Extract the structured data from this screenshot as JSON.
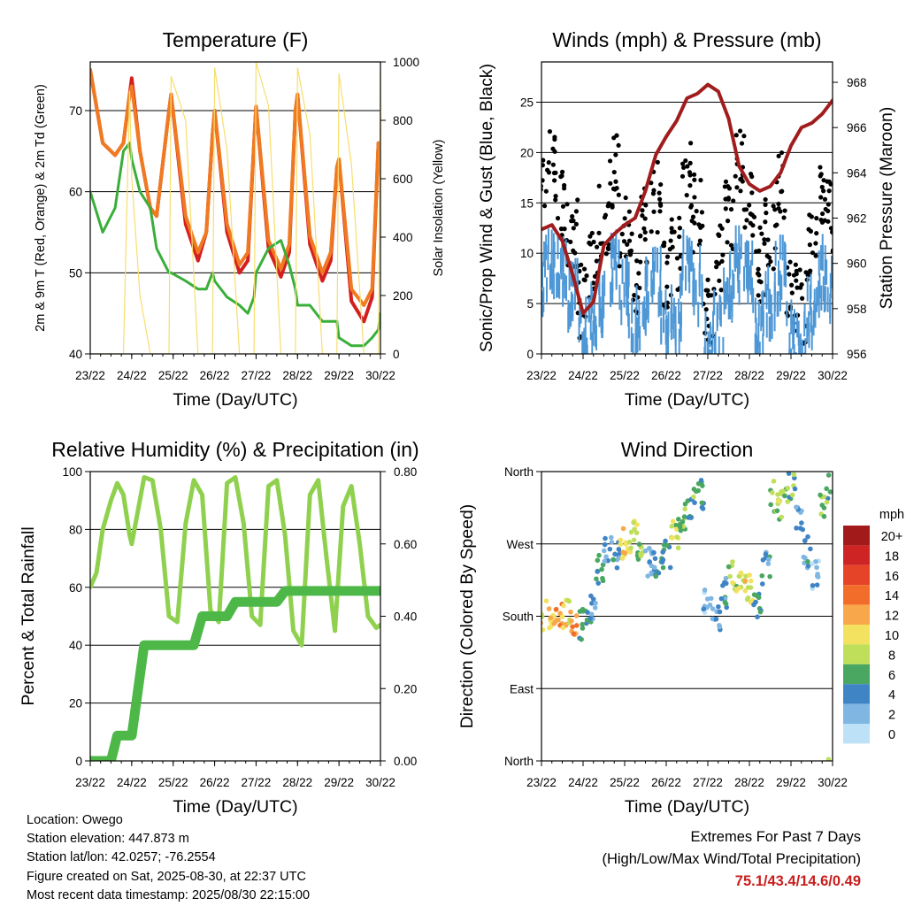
{
  "x_ticks": [
    "23/22",
    "24/22",
    "25/22",
    "26/22",
    "27/22",
    "28/22",
    "29/22",
    "30/22"
  ],
  "colors": {
    "temp_2m": "#d41f1f",
    "temp_9m": "#f07a21",
    "dewpoint": "#3aae3a",
    "solar": "#f7de6e",
    "gust": "#000000",
    "wind": "#4d97d6",
    "pressure": "#a11d1d",
    "rh": "#8fd14f",
    "precip": "#4db848",
    "extremes_text": "#c81e1e"
  },
  "chart_data": [
    {
      "id": "temperature",
      "type": "line",
      "title": "Temperature (F)",
      "xlabel": "Time (Day/UTC)",
      "ylabel": "2m & 9m T (Red, Orange) & 2m Td (Green)",
      "ylabel2": "Solar Insolation (Yellow)",
      "yticks": [
        "40",
        "50",
        "60",
        "70"
      ],
      "ylim": [
        40,
        76
      ],
      "y2ticks": [
        "0",
        "200",
        "400",
        "600",
        "800",
        "1000"
      ],
      "y2lim": [
        0,
        1000
      ],
      "grid": true,
      "x": [
        0,
        0.3,
        0.6,
        0.8,
        0.95,
        1.0,
        1.2,
        1.45,
        1.6,
        1.9,
        1.95,
        2.3,
        2.6,
        2.8,
        2.95,
        3.0,
        3.3,
        3.6,
        3.8,
        3.95,
        4.0,
        4.3,
        4.6,
        4.8,
        4.95,
        5.0,
        5.3,
        5.6,
        5.8,
        5.95,
        6.0,
        6.3,
        6.6,
        6.8,
        6.95,
        7.0
      ],
      "series": [
        {
          "name": "2m T",
          "color": "#d41f1f",
          "values": [
            75,
            66,
            64.5,
            66,
            72,
            74,
            65,
            58,
            57,
            70,
            72,
            56,
            51.5,
            55,
            67,
            70,
            55,
            50,
            51.5,
            66,
            70.5,
            53,
            49.5,
            52.5,
            70,
            72,
            53.5,
            49,
            51.5,
            63,
            64,
            46.5,
            44,
            47,
            66,
            64
          ]
        },
        {
          "name": "9m T",
          "color": "#f07a21",
          "values": [
            75,
            66,
            64.5,
            66,
            72,
            73,
            65,
            58,
            57,
            70,
            72,
            57,
            52.5,
            55,
            67,
            70,
            56,
            51,
            52.5,
            66,
            70.5,
            54,
            50.5,
            53.5,
            70,
            72,
            54.5,
            50,
            52.5,
            63,
            64,
            48,
            46,
            48,
            66,
            64
          ]
        },
        {
          "name": "2m Td",
          "color": "#3aae3a",
          "values": [
            60,
            55,
            58,
            65,
            66,
            64,
            60,
            58,
            53,
            50,
            50,
            49,
            48,
            48,
            50,
            49,
            47,
            46,
            45,
            47,
            50,
            53,
            54,
            51,
            48,
            46,
            46,
            44,
            44,
            44,
            42,
            41,
            41,
            42,
            43,
            45
          ]
        },
        {
          "name": "Solar",
          "color": "#f7de6e",
          "axis": "y2",
          "values": [
            0,
            0,
            0,
            0,
            900,
            600,
            200,
            0,
            0,
            0,
            950,
            800,
            0,
            0,
            0,
            980,
            700,
            0,
            0,
            0,
            1000,
            850,
            0,
            0,
            0,
            980,
            750,
            0,
            0,
            0,
            960,
            650,
            0,
            0,
            0,
            1000
          ]
        }
      ]
    },
    {
      "id": "winds",
      "type": "scatter",
      "title": "Winds (mph) & Pressure (mb)",
      "xlabel": "Time (Day/UTC)",
      "ylabel": "Sonic/Prop Wind & Gust (Blue, Black)",
      "ylabel2": "Station Pressure (Maroon)",
      "yticks": [
        "0",
        "5",
        "10",
        "15",
        "20",
        "25"
      ],
      "ylim": [
        0,
        29
      ],
      "y2ticks": [
        "956",
        "958",
        "960",
        "962",
        "964",
        "966",
        "968"
      ],
      "y2lim": [
        956,
        968.9
      ],
      "grid": true,
      "x": [
        0,
        0.25,
        0.5,
        0.75,
        1.0,
        1.25,
        1.5,
        1.75,
        2.0,
        2.25,
        2.5,
        2.75,
        3.0,
        3.25,
        3.5,
        3.75,
        4.0,
        4.25,
        4.5,
        4.75,
        5.0,
        5.25,
        5.5,
        5.75,
        6.0,
        6.25,
        6.5,
        6.75,
        7.0
      ],
      "series": [
        {
          "name": "Gust",
          "color": "#000000",
          "values": [
            16,
            19,
            15,
            12,
            5,
            9,
            13,
            18,
            12,
            8,
            13,
            16,
            8,
            10,
            17,
            14,
            5,
            9,
            14,
            19,
            15,
            9,
            12,
            16,
            6,
            5,
            10,
            15,
            14
          ]
        },
        {
          "name": "Wind",
          "color": "#4d97d6",
          "values": [
            9,
            10,
            9,
            7,
            3,
            5,
            7,
            10,
            7,
            4,
            7,
            9,
            4,
            5,
            10,
            8,
            2,
            4,
            8,
            10,
            9,
            4,
            6,
            9,
            3,
            2,
            5,
            9,
            8
          ]
        },
        {
          "name": "Pressure",
          "color": "#a11d1d",
          "axis": "y2",
          "values": [
            961.5,
            961.7,
            961,
            959.5,
            957.8,
            958.3,
            960.8,
            961.3,
            961.7,
            962,
            963.2,
            964.8,
            965.6,
            966.3,
            967.3,
            967.5,
            967.9,
            967.6,
            966.4,
            964.3,
            963.5,
            963.2,
            963.4,
            964,
            965.2,
            966,
            966.2,
            966.6,
            967.2
          ]
        }
      ]
    },
    {
      "id": "humidity",
      "type": "line",
      "title": "Relative Humidity (%) & Precipitation (in)",
      "xlabel": "Time (Day/UTC)",
      "ylabel": "Percent & Total Rainfall",
      "yticks": [
        "0",
        "20",
        "40",
        "60",
        "80",
        "100"
      ],
      "ylim": [
        0,
        100
      ],
      "y2ticks": [
        "0.00",
        "0.20",
        "0.40",
        "0.60",
        "0.80"
      ],
      "y2lim": [
        0,
        0.8
      ],
      "grid": true,
      "x": [
        0,
        0.15,
        0.3,
        0.5,
        0.65,
        0.8,
        0.95,
        1.0,
        1.3,
        1.5,
        1.7,
        1.9,
        2.1,
        2.3,
        2.5,
        2.7,
        2.9,
        3.1,
        3.3,
        3.5,
        3.7,
        3.9,
        4.1,
        4.3,
        4.5,
        4.7,
        4.9,
        5.1,
        5.3,
        5.5,
        5.7,
        5.9,
        6.1,
        6.3,
        6.5,
        6.7,
        6.9,
        7.0
      ],
      "series": [
        {
          "name": "RH",
          "color": "#8fd14f",
          "values": [
            60,
            65,
            80,
            90,
            96,
            92,
            78,
            75,
            98,
            97,
            80,
            50,
            48,
            82,
            97,
            92,
            52,
            48,
            96,
            98,
            82,
            50,
            47,
            95,
            97,
            78,
            45,
            40,
            92,
            97,
            70,
            45,
            88,
            95,
            75,
            50,
            46,
            47
          ]
        },
        {
          "name": "Total Rainfall",
          "color": "#4db848",
          "axis": "y2",
          "values": [
            0,
            0,
            0,
            0,
            0.07,
            0.07,
            0.07,
            0.07,
            0.32,
            0.32,
            0.32,
            0.32,
            0.32,
            0.32,
            0.32,
            0.4,
            0.4,
            0.4,
            0.4,
            0.44,
            0.44,
            0.44,
            0.44,
            0.44,
            0.44,
            0.47,
            0.47,
            0.47,
            0.47,
            0.47,
            0.47,
            0.47,
            0.47,
            0.47,
            0.47,
            0.47,
            0.47,
            0.47
          ]
        }
      ]
    },
    {
      "id": "direction",
      "type": "scatter",
      "title": "Wind Direction",
      "xlabel": "Time (Day/UTC)",
      "ylabel": "Direction (Colored By Speed)",
      "yticks": [
        "North",
        "East",
        "South",
        "West",
        "North"
      ],
      "ylim": [
        0,
        360
      ],
      "grid": true,
      "x": [
        0,
        0.2,
        0.4,
        0.6,
        0.8,
        1.0,
        1.2,
        1.4,
        1.6,
        1.8,
        2.0,
        2.2,
        2.4,
        2.6,
        2.8,
        3.0,
        3.2,
        3.4,
        3.6,
        3.8,
        4.0,
        4.2,
        4.4,
        4.6,
        4.8,
        5.0,
        5.2,
        5.4,
        5.6,
        5.8,
        6.0,
        6.2,
        6.4,
        6.6,
        6.8,
        7.0
      ],
      "series": [
        {
          "name": "Direction",
          "values": [
            180,
            182,
            178,
            185,
            175,
            170,
            190,
            240,
            260,
            255,
            270,
            280,
            265,
            250,
            240,
            260,
            285,
            300,
            320,
            330,
            200,
            180,
            210,
            230,
            225,
            215,
            190,
            240,
            330,
            320,
            340,
            300,
            260,
            230,
            320,
            350
          ],
          "speed": [
            10,
            11,
            12,
            10,
            13,
            5,
            4,
            6,
            3,
            4,
            11,
            9,
            7,
            3,
            4,
            5,
            8,
            7,
            6,
            5,
            2,
            3,
            4,
            8,
            10,
            9,
            5,
            4,
            7,
            8,
            6,
            3,
            4,
            2,
            6,
            7
          ]
        }
      ],
      "legend": {
        "title": "mph",
        "labels": [
          "20+",
          "18",
          "16",
          "14",
          "12",
          "10",
          "8",
          "6",
          "4",
          "2",
          "0"
        ],
        "colors": [
          "#a31a1a",
          "#cf2424",
          "#e64428",
          "#f26d2a",
          "#f9a74b",
          "#f2e260",
          "#bfdf5b",
          "#4aa762",
          "#3f84c5",
          "#7fb6e2",
          "#bde1f6"
        ]
      }
    }
  ],
  "info": {
    "location": "Location: Owego",
    "elevation": "Station elevation: 447.873 m",
    "latlon": "Station lat/lon: 42.0257; -76.2554",
    "created": "Figure created on Sat, 2025-08-30, at 22:37 UTC",
    "recent": "Most recent data timestamp: 2025/08/30 22:15:00"
  },
  "extremes": {
    "line1": "Extremes For Past 7 Days",
    "line2": "(High/Low/Max Wind/Total Precipitation)",
    "values": "75.1/43.4/14.6/0.49"
  }
}
